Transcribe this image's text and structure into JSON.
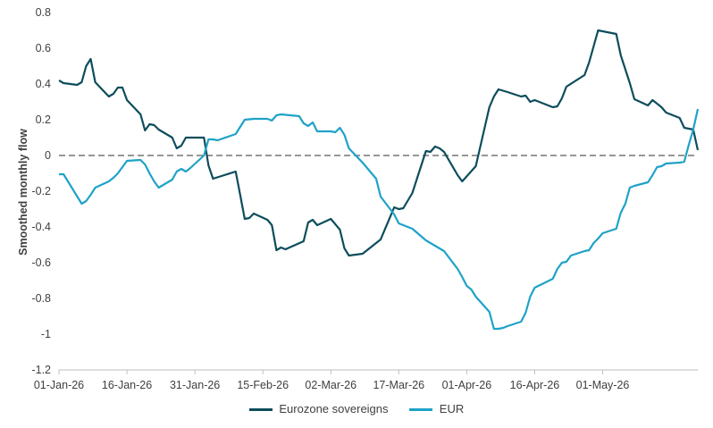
{
  "chart_data": {
    "type": "line",
    "title": "",
    "xlabel": "",
    "ylabel": "Smoothed monthly flow",
    "ylim": [
      -1.2,
      0.8
    ],
    "yticks": [
      0.8,
      0.6,
      0.4,
      0.2,
      0,
      -0.2,
      -0.4,
      -0.6,
      -0.8,
      -1,
      -1.2
    ],
    "x_tick_labels": [
      "01-Jan-26",
      "16-Jan-26",
      "31-Jan-26",
      "15-Feb-26",
      "02-Mar-26",
      "17-Mar-26",
      "01-Apr-26",
      "16-Apr-26",
      "01-May-26"
    ],
    "zero_line": "dashed",
    "grid": false,
    "legend": "bottom",
    "series": [
      {
        "name": "Eurozone sovereigns",
        "color": "#0d4d5c",
        "points": [
          [
            "2026-01-01",
            0.42
          ],
          [
            "2026-01-02",
            0.405
          ],
          [
            "2026-01-05",
            0.395
          ],
          [
            "2026-01-06",
            0.41
          ],
          [
            "2026-01-07",
            0.5
          ],
          [
            "2026-01-08",
            0.54
          ],
          [
            "2026-01-09",
            0.41
          ],
          [
            "2026-01-12",
            0.33
          ],
          [
            "2026-01-13",
            0.345
          ],
          [
            "2026-01-14",
            0.38
          ],
          [
            "2026-01-15",
            0.38
          ],
          [
            "2026-01-16",
            0.31
          ],
          [
            "2026-01-19",
            0.23
          ],
          [
            "2026-01-20",
            0.14
          ],
          [
            "2026-01-21",
            0.175
          ],
          [
            "2026-01-22",
            0.17
          ],
          [
            "2026-01-23",
            0.145
          ],
          [
            "2026-01-26",
            0.1
          ],
          [
            "2026-01-27",
            0.04
          ],
          [
            "2026-01-28",
            0.055
          ],
          [
            "2026-01-29",
            0.1
          ],
          [
            "2026-01-30",
            0.1
          ],
          [
            "2026-02-02",
            0.1
          ],
          [
            "2026-02-03",
            -0.055
          ],
          [
            "2026-02-04",
            -0.13
          ],
          [
            "2026-02-09",
            -0.09
          ],
          [
            "2026-02-10",
            -0.22
          ],
          [
            "2026-02-11",
            -0.355
          ],
          [
            "2026-02-12",
            -0.35
          ],
          [
            "2026-02-13",
            -0.325
          ],
          [
            "2026-02-16",
            -0.36
          ],
          [
            "2026-02-17",
            -0.39
          ],
          [
            "2026-02-18",
            -0.53
          ],
          [
            "2026-02-19",
            -0.515
          ],
          [
            "2026-02-20",
            -0.525
          ],
          [
            "2026-02-24",
            -0.48
          ],
          [
            "2026-02-25",
            -0.375
          ],
          [
            "2026-02-26",
            -0.36
          ],
          [
            "2026-02-27",
            -0.39
          ],
          [
            "2026-03-02",
            -0.355
          ],
          [
            "2026-03-04",
            -0.415
          ],
          [
            "2026-03-05",
            -0.52
          ],
          [
            "2026-03-06",
            -0.56
          ],
          [
            "2026-03-09",
            -0.55
          ],
          [
            "2026-03-11",
            -0.51
          ],
          [
            "2026-03-13",
            -0.47
          ],
          [
            "2026-03-16",
            -0.29
          ],
          [
            "2026-03-17",
            -0.3
          ],
          [
            "2026-03-18",
            -0.295
          ],
          [
            "2026-03-20",
            -0.21
          ],
          [
            "2026-03-23",
            0.025
          ],
          [
            "2026-03-24",
            0.02
          ],
          [
            "2026-03-25",
            0.05
          ],
          [
            "2026-03-26",
            0.04
          ],
          [
            "2026-03-27",
            0.02
          ],
          [
            "2026-03-30",
            -0.11
          ],
          [
            "2026-03-31",
            -0.145
          ],
          [
            "2026-04-03",
            -0.06
          ],
          [
            "2026-04-06",
            0.27
          ],
          [
            "2026-04-07",
            0.33
          ],
          [
            "2026-04-08",
            0.37
          ],
          [
            "2026-04-10",
            0.355
          ],
          [
            "2026-04-13",
            0.33
          ],
          [
            "2026-04-14",
            0.335
          ],
          [
            "2026-04-15",
            0.3
          ],
          [
            "2026-04-16",
            0.31
          ],
          [
            "2026-04-17",
            0.3
          ],
          [
            "2026-04-20",
            0.27
          ],
          [
            "2026-04-21",
            0.275
          ],
          [
            "2026-04-22",
            0.32
          ],
          [
            "2026-04-23",
            0.385
          ],
          [
            "2026-04-27",
            0.45
          ],
          [
            "2026-04-28",
            0.52
          ],
          [
            "2026-04-30",
            0.7
          ],
          [
            "2026-05-04",
            0.68
          ],
          [
            "2026-05-05",
            0.56
          ],
          [
            "2026-05-07",
            0.405
          ],
          [
            "2026-05-08",
            0.315
          ],
          [
            "2026-05-11",
            0.28
          ],
          [
            "2026-05-12",
            0.31
          ],
          [
            "2026-05-13",
            0.29
          ],
          [
            "2026-05-14",
            0.27
          ],
          [
            "2026-05-15",
            0.24
          ],
          [
            "2026-05-18",
            0.21
          ],
          [
            "2026-05-19",
            0.155
          ],
          [
            "2026-05-20",
            0.15
          ],
          [
            "2026-05-21",
            0.145
          ],
          [
            "2026-05-22",
            0.03
          ]
        ]
      },
      {
        "name": "EUR",
        "color": "#1fa2c8",
        "points": [
          [
            "2026-01-01",
            -0.105
          ],
          [
            "2026-01-02",
            -0.105
          ],
          [
            "2026-01-06",
            -0.27
          ],
          [
            "2026-01-07",
            -0.255
          ],
          [
            "2026-01-08",
            -0.22
          ],
          [
            "2026-01-09",
            -0.18
          ],
          [
            "2026-01-12",
            -0.145
          ],
          [
            "2026-01-13",
            -0.125
          ],
          [
            "2026-01-14",
            -0.1
          ],
          [
            "2026-01-15",
            -0.065
          ],
          [
            "2026-01-16",
            -0.03
          ],
          [
            "2026-01-19",
            -0.025
          ],
          [
            "2026-01-20",
            -0.05
          ],
          [
            "2026-01-21",
            -0.1
          ],
          [
            "2026-01-22",
            -0.145
          ],
          [
            "2026-01-23",
            -0.18
          ],
          [
            "2026-01-26",
            -0.135
          ],
          [
            "2026-01-27",
            -0.09
          ],
          [
            "2026-01-28",
            -0.075
          ],
          [
            "2026-01-29",
            -0.09
          ],
          [
            "2026-01-30",
            -0.07
          ],
          [
            "2026-02-02",
            0.0
          ],
          [
            "2026-02-03",
            0.09
          ],
          [
            "2026-02-04",
            0.09
          ],
          [
            "2026-02-05",
            0.085
          ],
          [
            "2026-02-09",
            0.12
          ],
          [
            "2026-02-11",
            0.2
          ],
          [
            "2026-02-13",
            0.205
          ],
          [
            "2026-02-16",
            0.205
          ],
          [
            "2026-02-17",
            0.195
          ],
          [
            "2026-02-18",
            0.225
          ],
          [
            "2026-02-19",
            0.23
          ],
          [
            "2026-02-23",
            0.22
          ],
          [
            "2026-02-24",
            0.18
          ],
          [
            "2026-02-25",
            0.165
          ],
          [
            "2026-02-26",
            0.185
          ],
          [
            "2026-02-27",
            0.135
          ],
          [
            "2026-03-02",
            0.135
          ],
          [
            "2026-03-03",
            0.13
          ],
          [
            "2026-03-04",
            0.155
          ],
          [
            "2026-03-05",
            0.115
          ],
          [
            "2026-03-06",
            0.04
          ],
          [
            "2026-03-09",
            -0.04
          ],
          [
            "2026-03-12",
            -0.13
          ],
          [
            "2026-03-13",
            -0.23
          ],
          [
            "2026-03-16",
            -0.33
          ],
          [
            "2026-03-17",
            -0.38
          ],
          [
            "2026-03-18",
            -0.39
          ],
          [
            "2026-03-20",
            -0.41
          ],
          [
            "2026-03-23",
            -0.475
          ],
          [
            "2026-03-27",
            -0.535
          ],
          [
            "2026-03-30",
            -0.635
          ],
          [
            "2026-03-31",
            -0.68
          ],
          [
            "2026-04-01",
            -0.73
          ],
          [
            "2026-04-02",
            -0.75
          ],
          [
            "2026-04-03",
            -0.79
          ],
          [
            "2026-04-06",
            -0.875
          ],
          [
            "2026-04-07",
            -0.97
          ],
          [
            "2026-04-08",
            -0.97
          ],
          [
            "2026-04-09",
            -0.965
          ],
          [
            "2026-04-10",
            -0.955
          ],
          [
            "2026-04-13",
            -0.93
          ],
          [
            "2026-04-14",
            -0.88
          ],
          [
            "2026-04-15",
            -0.79
          ],
          [
            "2026-04-16",
            -0.74
          ],
          [
            "2026-04-20",
            -0.69
          ],
          [
            "2026-04-21",
            -0.635
          ],
          [
            "2026-04-22",
            -0.6
          ],
          [
            "2026-04-23",
            -0.595
          ],
          [
            "2026-04-24",
            -0.56
          ],
          [
            "2026-04-27",
            -0.535
          ],
          [
            "2026-04-28",
            -0.53
          ],
          [
            "2026-04-29",
            -0.49
          ],
          [
            "2026-04-30",
            -0.465
          ],
          [
            "2026-05-01",
            -0.435
          ],
          [
            "2026-05-04",
            -0.41
          ],
          [
            "2026-05-05",
            -0.32
          ],
          [
            "2026-05-06",
            -0.27
          ],
          [
            "2026-05-07",
            -0.18
          ],
          [
            "2026-05-08",
            -0.17
          ],
          [
            "2026-05-11",
            -0.15
          ],
          [
            "2026-05-12",
            -0.11
          ],
          [
            "2026-05-13",
            -0.065
          ],
          [
            "2026-05-14",
            -0.06
          ],
          [
            "2026-05-15",
            -0.045
          ],
          [
            "2026-05-18",
            -0.04
          ],
          [
            "2026-05-19",
            -0.035
          ],
          [
            "2026-05-20",
            0.06
          ],
          [
            "2026-05-21",
            0.145
          ],
          [
            "2026-05-22",
            0.26
          ]
        ]
      }
    ]
  }
}
